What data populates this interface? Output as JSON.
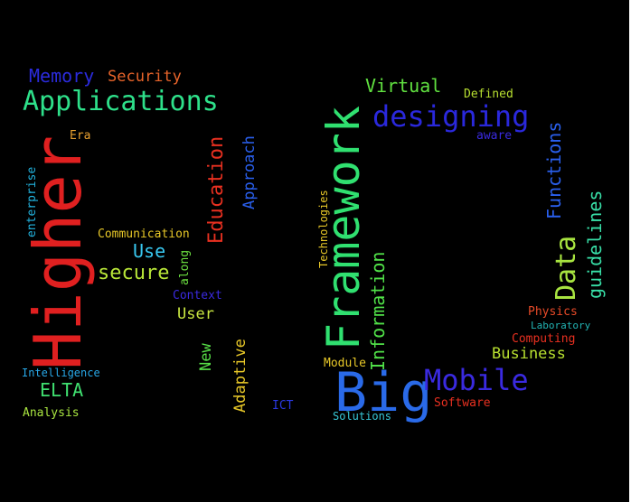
{
  "words": [
    {
      "text": "Memory",
      "color": "#2b2bdc"
    },
    {
      "text": "Security",
      "color": "#e8642a"
    },
    {
      "text": "Applications",
      "color": "#2ee08a"
    },
    {
      "text": "Era",
      "color": "#e8a030"
    },
    {
      "text": "enterprise",
      "color": "#22b4e0"
    },
    {
      "text": "Higher",
      "color": "#e02020"
    },
    {
      "text": "Education",
      "color": "#e83020"
    },
    {
      "text": "Approach",
      "color": "#2a60ee"
    },
    {
      "text": "Communication",
      "color": "#e8c828"
    },
    {
      "text": "Use",
      "color": "#38c8f0"
    },
    {
      "text": "along",
      "color": "#6ce040"
    },
    {
      "text": "secure",
      "color": "#b8e638"
    },
    {
      "text": "Context",
      "color": "#3a2ae0"
    },
    {
      "text": "User",
      "color": "#c8e640"
    },
    {
      "text": "New",
      "color": "#58e048"
    },
    {
      "text": "Adaptive",
      "color": "#e8c828"
    },
    {
      "text": "Intelligence",
      "color": "#28a8e8"
    },
    {
      "text": "ELTA",
      "color": "#40e070"
    },
    {
      "text": "Analysis",
      "color": "#a8e440"
    },
    {
      "text": "ICT",
      "color": "#2a38e0"
    },
    {
      "text": "Technologies",
      "color": "#e8c828"
    },
    {
      "text": "Framework",
      "color": "#30e070"
    },
    {
      "text": "Virtual",
      "color": "#60e040"
    },
    {
      "text": "Defined",
      "color": "#b8e030"
    },
    {
      "text": "designing",
      "color": "#2a28dc"
    },
    {
      "text": "aware",
      "color": "#3a2ae0"
    },
    {
      "text": "Functions",
      "color": "#2a60ee"
    },
    {
      "text": "Information",
      "color": "#50e048"
    },
    {
      "text": "Data",
      "color": "#a8e440"
    },
    {
      "text": "guidelines",
      "color": "#38e0a8"
    },
    {
      "text": "Module",
      "color": "#e8c828"
    },
    {
      "text": "Big",
      "color": "#2a6ae8"
    },
    {
      "text": "Mobile",
      "color": "#3a2ae0"
    },
    {
      "text": "Physics",
      "color": "#e84a28"
    },
    {
      "text": "Laboratory",
      "color": "#22b4b4"
    },
    {
      "text": "Computing",
      "color": "#e83020"
    },
    {
      "text": "Business",
      "color": "#b8e030"
    },
    {
      "text": "Software",
      "color": "#e83020"
    },
    {
      "text": "Solutions",
      "color": "#38c8d8"
    }
  ]
}
